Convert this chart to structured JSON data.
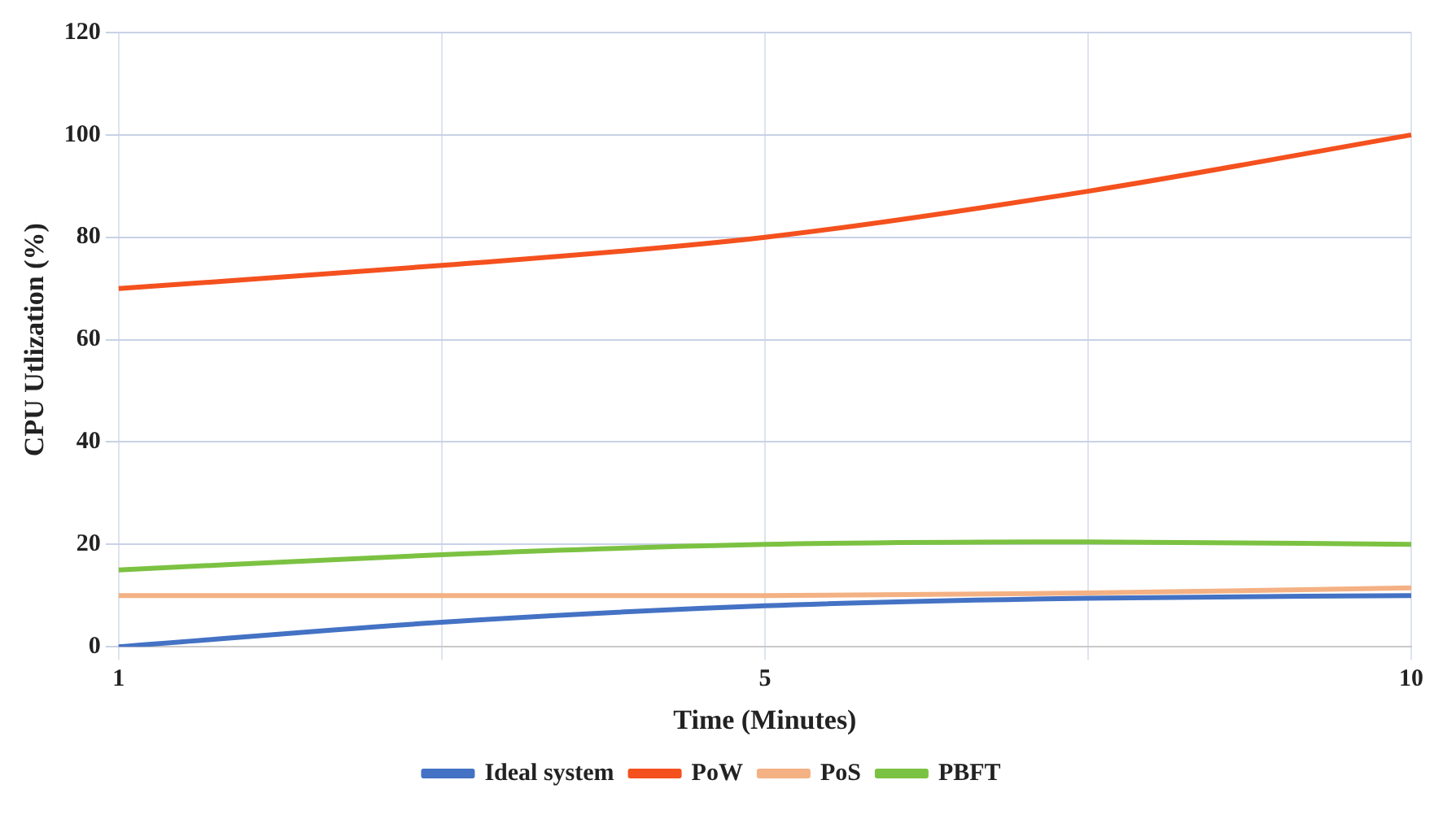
{
  "chart_data": {
    "type": "line",
    "xlabel": "Time (Minutes)",
    "ylabel": "CPU Utlization (%)",
    "categories": [
      "1",
      null,
      "5",
      null,
      "10"
    ],
    "series": [
      {
        "name": "Ideal system",
        "color": "#4472c4",
        "values": [
          0,
          4.8,
          8,
          9.5,
          10
        ]
      },
      {
        "name": "PoW",
        "color": "#f4511e",
        "values": [
          70,
          74.5,
          80,
          89,
          100
        ]
      },
      {
        "name": "PoS",
        "color": "#f4b183",
        "values": [
          10,
          10,
          10,
          10.5,
          11.5
        ]
      },
      {
        "name": "PBFT",
        "color": "#7cc242",
        "values": [
          15,
          18,
          20,
          20.5,
          20
        ]
      }
    ],
    "ylim": [
      0,
      120
    ],
    "yticks": [
      0,
      20,
      40,
      60,
      80,
      100,
      120
    ],
    "grid": true,
    "legend": "bottom"
  }
}
